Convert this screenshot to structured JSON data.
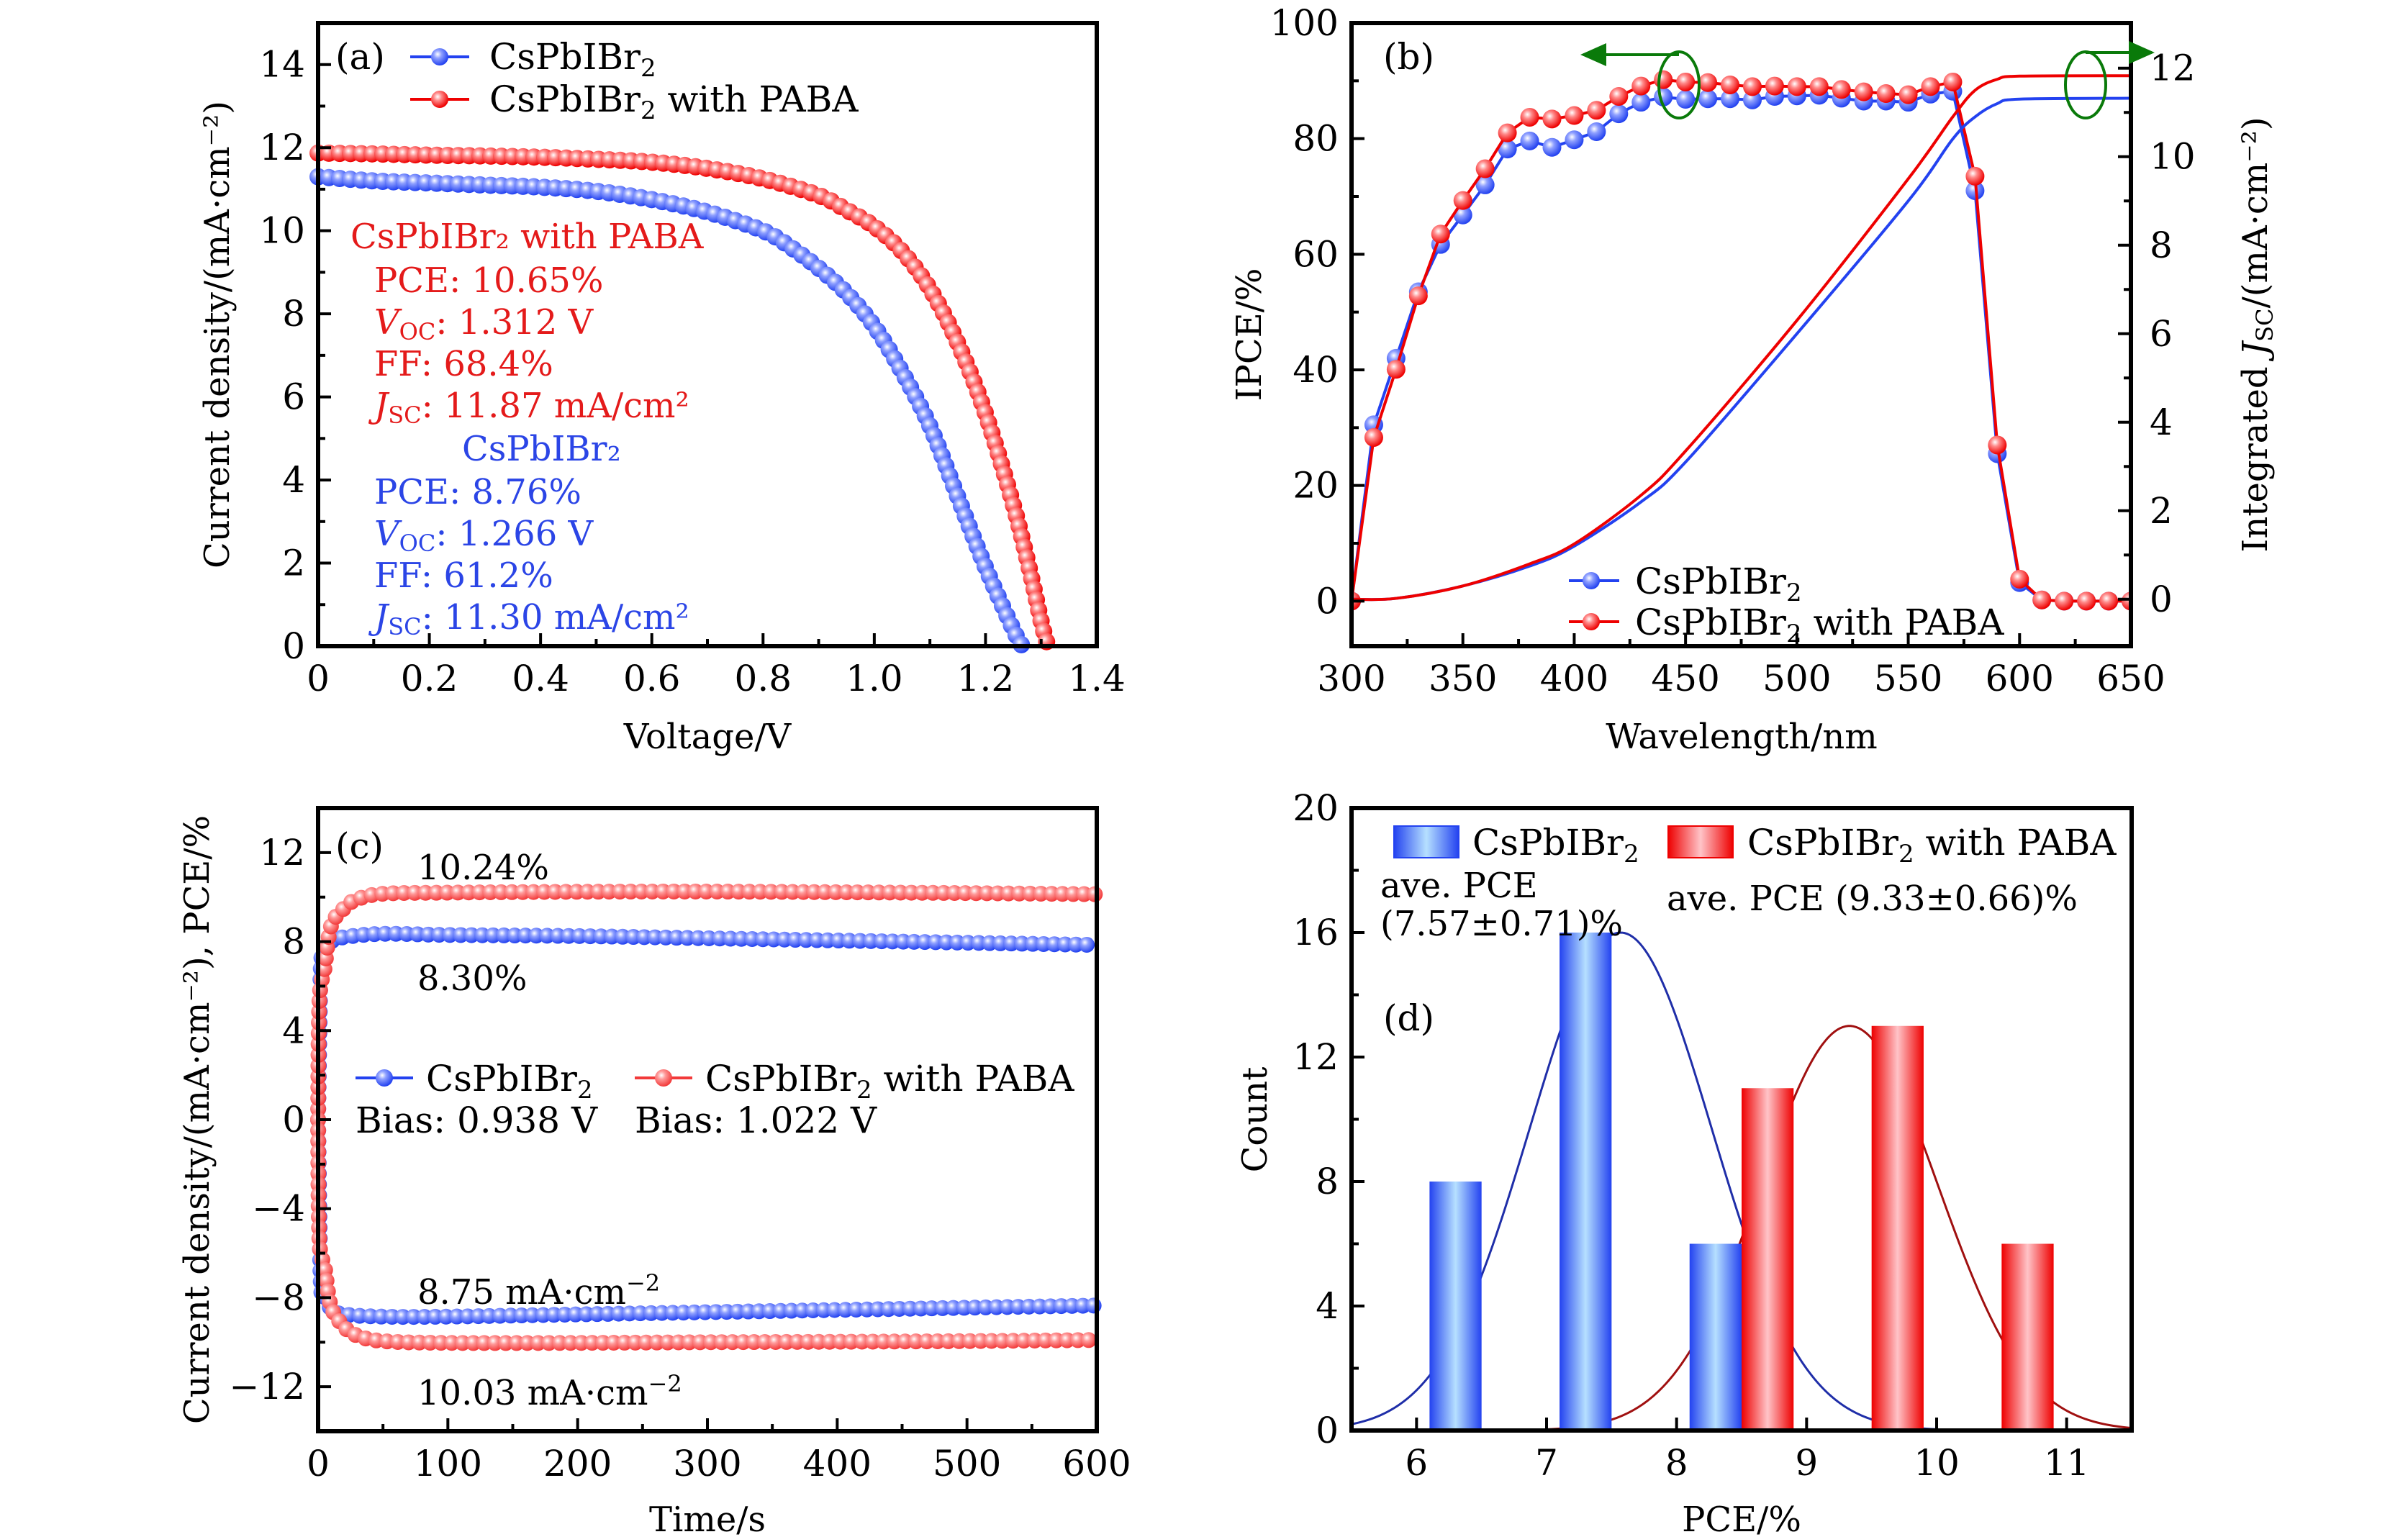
{
  "figure": {
    "series_names": {
      "control": "CsPbIBr",
      "control_sub": "2",
      "paba_suffix": " with PABA"
    },
    "colors": {
      "blue": "#2342f0",
      "blue_light": "#b6e0ff",
      "red": "#ee0000",
      "red_light": "#ffc4c8",
      "red_c": "#f23a3a",
      "fit_blue": "#1f2ea8",
      "fit_red": "#a01010",
      "arrow": "#0a7a0a",
      "text_red": "#e41a1a",
      "text_blue": "#2b45e6"
    }
  },
  "chart_data": [
    {
      "id": "a",
      "panel_label": "(a)",
      "type": "line",
      "title": "",
      "xlabel": "Voltage/V",
      "ylabel": "Current density/(mA·cm⁻²)",
      "xlim": [
        0,
        1.4
      ],
      "ylim": [
        0,
        15
      ],
      "xticks": [
        0,
        0.2,
        0.4,
        0.6,
        0.8,
        1.0,
        1.2,
        1.4
      ],
      "xtick_labels": [
        "0",
        "0.2",
        "0.4",
        "0.6",
        "0.8",
        "1.0",
        "1.2",
        "1.4"
      ],
      "yticks": [
        0,
        2,
        4,
        6,
        8,
        10,
        12,
        14
      ],
      "ytick_labels": [
        "0",
        "2",
        "4",
        "6",
        "8",
        "10",
        "12",
        "14"
      ],
      "legend": [
        "CsPbIBr₂",
        "CsPbIBr₂ with PABA"
      ],
      "legend_position": "top-left",
      "series": [
        {
          "name": "CsPbIBr₂",
          "color_key": "blue",
          "x": [
            0,
            0.1,
            0.2,
            0.3,
            0.4,
            0.5,
            0.6,
            0.7,
            0.8,
            0.85,
            0.9,
            0.95,
            1.0,
            1.05,
            1.1,
            1.15,
            1.2,
            1.25,
            1.266
          ],
          "y": [
            11.3,
            11.2,
            11.15,
            11.1,
            11.05,
            10.95,
            10.75,
            10.45,
            10.0,
            9.6,
            9.1,
            8.5,
            7.7,
            6.6,
            5.3,
            3.6,
            1.9,
            0.4,
            0
          ]
        },
        {
          "name": "CsPbIBr₂ with PABA",
          "color_key": "red",
          "x": [
            0,
            0.1,
            0.2,
            0.3,
            0.4,
            0.5,
            0.6,
            0.7,
            0.8,
            0.9,
            0.95,
            1.0,
            1.05,
            1.1,
            1.15,
            1.2,
            1.25,
            1.28,
            1.3,
            1.312
          ],
          "y": [
            11.87,
            11.85,
            11.82,
            11.8,
            11.77,
            11.72,
            11.65,
            11.5,
            11.25,
            10.85,
            10.5,
            10.1,
            9.5,
            8.6,
            7.3,
            5.6,
            3.4,
            1.8,
            0.6,
            0
          ]
        }
      ],
      "annotations": {
        "paba_title": "CsPbIBr₂ with PABA",
        "paba_pce": "PCE: 10.65%",
        "paba_voc_label": "V",
        "paba_voc_sub": "OC",
        "paba_voc_value": ": 1.312 V",
        "paba_ff": "FF: 68.4%",
        "paba_jsc_label": "J",
        "paba_jsc_sub": "SC",
        "paba_jsc_value": ": 11.87 mA/cm²",
        "ctrl_title": "CsPbIBr₂",
        "ctrl_pce": "PCE: 8.76%",
        "ctrl_voc_label": "V",
        "ctrl_voc_sub": "OC",
        "ctrl_voc_value": ": 1.266 V",
        "ctrl_ff": "FF: 61.2%",
        "ctrl_jsc_label": "J",
        "ctrl_jsc_sub": "SC",
        "ctrl_jsc_value": ": 11.30 mA/cm²"
      }
    },
    {
      "id": "b",
      "panel_label": "(b)",
      "type": "line",
      "title": "",
      "xlabel": "Wavelength/nm",
      "ylabel": "IPCE/%",
      "ylabel_right": "Integrated J_SC/(mA·cm⁻²)",
      "xlim": [
        300,
        650
      ],
      "ylim": [
        -7.8,
        100
      ],
      "ylim_right": [
        -1.06,
        13.02
      ],
      "xticks": [
        300,
        350,
        400,
        450,
        500,
        550,
        600,
        650
      ],
      "xtick_labels": [
        "300",
        "350",
        "400",
        "450",
        "500",
        "550",
        "600",
        "650"
      ],
      "yticks": [
        0,
        20,
        40,
        60,
        80,
        100
      ],
      "ytick_labels": [
        "0",
        "20",
        "40",
        "60",
        "80",
        "100"
      ],
      "yticks_right": [
        0,
        2,
        4,
        6,
        8,
        10,
        12
      ],
      "ytick_labels_right": [
        "0",
        "2",
        "4",
        "6",
        "8",
        "10",
        "12"
      ],
      "legend": [
        "CsPbIBr₂",
        "CsPbIBr₂ with PABA"
      ],
      "legend_position": "bottom-center",
      "series": [
        {
          "name": "CsPbIBr₂",
          "axis": "left",
          "color_key": "blue",
          "x": [
            300,
            310,
            320,
            330,
            340,
            350,
            360,
            370,
            380,
            390,
            400,
            410,
            420,
            430,
            440,
            450,
            460,
            470,
            480,
            490,
            500,
            510,
            520,
            530,
            540,
            550,
            560,
            570,
            580,
            590,
            600,
            610,
            620,
            630,
            640,
            650
          ],
          "y": [
            0,
            30.5,
            42,
            53.5,
            61.7,
            66.8,
            72,
            78.2,
            79.6,
            78.5,
            79.8,
            81.2,
            84.3,
            86.3,
            87.2,
            86.8,
            86.9,
            86.9,
            86.7,
            87.3,
            87.4,
            87.5,
            87.0,
            86.5,
            86.5,
            86.3,
            87.7,
            88.2,
            71,
            25.5,
            3.2,
            0.2,
            0,
            0,
            0,
            0
          ]
        },
        {
          "name": "CsPbIBr₂ with PABA",
          "axis": "left",
          "color_key": "red",
          "x": [
            300,
            310,
            320,
            330,
            340,
            350,
            360,
            370,
            380,
            390,
            400,
            410,
            420,
            430,
            440,
            450,
            460,
            470,
            480,
            490,
            500,
            510,
            520,
            530,
            540,
            550,
            560,
            570,
            580,
            590,
            600,
            610,
            620,
            630,
            640,
            650
          ],
          "y": [
            0,
            28.3,
            40.1,
            52.8,
            63.5,
            69.3,
            74.8,
            81,
            83.7,
            83.4,
            84,
            84.9,
            87.3,
            89.1,
            90.2,
            89.8,
            89.7,
            89.3,
            89.0,
            89.1,
            89.0,
            89.0,
            88.5,
            88.1,
            87.8,
            87.6,
            89.0,
            89.8,
            73.5,
            27,
            3.8,
            0.2,
            0,
            0,
            0,
            0
          ]
        },
        {
          "name": "CsPbIBr₂ integrated J_SC",
          "axis": "right",
          "color_key": "blue",
          "x": [
            300,
            320,
            350,
            380,
            400,
            430,
            450,
            500,
            550,
            570,
            580,
            590,
            600,
            650
          ],
          "y": [
            0,
            0.02,
            0.3,
            0.75,
            1.2,
            2.2,
            3.1,
            6.0,
            9.0,
            10.4,
            10.9,
            11.2,
            11.3,
            11.32
          ]
        },
        {
          "name": "CsPbIBr₂ with PABA integrated J_SC",
          "axis": "right",
          "color_key": "red",
          "x": [
            300,
            320,
            350,
            380,
            400,
            430,
            450,
            500,
            550,
            570,
            580,
            590,
            600,
            650
          ],
          "y": [
            0,
            0.02,
            0.3,
            0.8,
            1.25,
            2.35,
            3.35,
            6.3,
            9.5,
            10.9,
            11.5,
            11.75,
            11.82,
            11.83
          ]
        }
      ],
      "annotations": {
        "left_arrow": "points to left axis (IPCE)",
        "right_arrow": "points to right axis (Integrated J_SC)"
      }
    },
    {
      "id": "c",
      "panel_label": "(c)",
      "type": "line",
      "title": "",
      "xlabel": "Time/s",
      "ylabel": "Current density/(mA·cm⁻²), PCE/%",
      "xlim": [
        0,
        600
      ],
      "ylim": [
        -14,
        14
      ],
      "xticks": [
        0,
        100,
        200,
        300,
        400,
        500,
        600
      ],
      "xtick_labels": [
        "0",
        "100",
        "200",
        "300",
        "400",
        "500",
        "600"
      ],
      "yticks": [
        -12,
        -8,
        -4,
        0,
        4,
        8,
        12
      ],
      "ytick_labels": [
        "−12",
        "−8",
        "−4",
        "0",
        "4",
        "8",
        "12"
      ],
      "legend": [
        "CsPbIBr₂",
        "CsPbIBr₂ with PABA"
      ],
      "legend_position": "center",
      "series": [
        {
          "name": "CsPbIBr₂ PCE",
          "color_key": "blue",
          "x": [
            0,
            2,
            5,
            10,
            20,
            50,
            100,
            200,
            300,
            400,
            500,
            600
          ],
          "y": [
            0,
            6.7,
            7.6,
            8.0,
            8.2,
            8.35,
            8.3,
            8.25,
            8.15,
            8.05,
            7.95,
            7.85
          ]
        },
        {
          "name": "CsPbIBr₂ current density",
          "color_key": "blue",
          "x": [
            0,
            2,
            5,
            10,
            20,
            50,
            100,
            200,
            300,
            400,
            500,
            600
          ],
          "y": [
            0,
            -7.2,
            -7.9,
            -8.5,
            -8.75,
            -8.85,
            -8.85,
            -8.75,
            -8.65,
            -8.55,
            -8.45,
            -8.35
          ]
        },
        {
          "name": "CsPbIBr₂ with PABA PCE",
          "color_key": "red_c",
          "x": [
            0,
            1,
            5,
            10,
            20,
            30,
            50,
            100,
            200,
            300,
            400,
            500,
            600
          ],
          "y": [
            0,
            5.3,
            6.8,
            8.7,
            9.5,
            9.9,
            10.15,
            10.2,
            10.24,
            10.25,
            10.22,
            10.18,
            10.13
          ]
        },
        {
          "name": "CsPbIBr₂ with PABA current density",
          "color_key": "red_c",
          "x": [
            0,
            1,
            5,
            10,
            20,
            30,
            50,
            100,
            200,
            300,
            400,
            500,
            600
          ],
          "y": [
            0,
            -5.4,
            -6.6,
            -8.4,
            -9.3,
            -9.7,
            -9.95,
            -10.03,
            -10.03,
            -10.0,
            -9.98,
            -9.95,
            -9.9
          ]
        }
      ],
      "annotations": {
        "paba_pce": "10.24%",
        "ctrl_pce": "8.30%",
        "ctrl_j": "8.75 mA·cm",
        "ctrl_j_exp": "−2",
        "paba_j": "10.03 mA·cm",
        "paba_j_exp": "−2",
        "ctrl_bias": "Bias: 0.938 V",
        "paba_bias": "Bias: 1.022 V"
      }
    },
    {
      "id": "d",
      "panel_label": "(d)",
      "type": "bar",
      "title": "",
      "xlabel": "PCE/%",
      "ylabel": "Count",
      "xlim": [
        5.5,
        11.5
      ],
      "ylim": [
        0,
        20
      ],
      "xticks": [
        6,
        7,
        8,
        9,
        10,
        11
      ],
      "xtick_labels": [
        "6",
        "7",
        "8",
        "9",
        "10",
        "11"
      ],
      "yticks": [
        0,
        4,
        8,
        12,
        16,
        20
      ],
      "ytick_labels": [
        "0",
        "4",
        "8",
        "12",
        "16",
        "20"
      ],
      "legend": [
        "CsPbIBr₂",
        "CsPbIBr₂ with PABA"
      ],
      "legend_position": "top",
      "series": [
        {
          "name": "CsPbIBr₂",
          "color_key": "blue",
          "bins": [
            [
              6.1,
              6.5
            ],
            [
              7.1,
              7.5
            ],
            [
              8.1,
              8.5
            ]
          ],
          "values": [
            8,
            16,
            6
          ],
          "fit": {
            "type": "gaussian",
            "mean": 7.57,
            "sd": 0.7,
            "peak": 16
          }
        },
        {
          "name": "CsPbIBr₂ with PABA",
          "color_key": "red",
          "bins": [
            [
              8.5,
              8.9
            ],
            [
              9.5,
              9.9
            ],
            [
              10.5,
              10.9
            ]
          ],
          "values": [
            11,
            13,
            6
          ],
          "fit": {
            "type": "gaussian",
            "mean": 9.33,
            "sd": 0.68,
            "peak": 13
          }
        }
      ],
      "annotations": {
        "ctrl_avg_line1": "ave. PCE",
        "ctrl_avg_line2": "(7.57±0.71)%",
        "paba_avg": "ave. PCE (9.33±0.66)%"
      }
    }
  ]
}
